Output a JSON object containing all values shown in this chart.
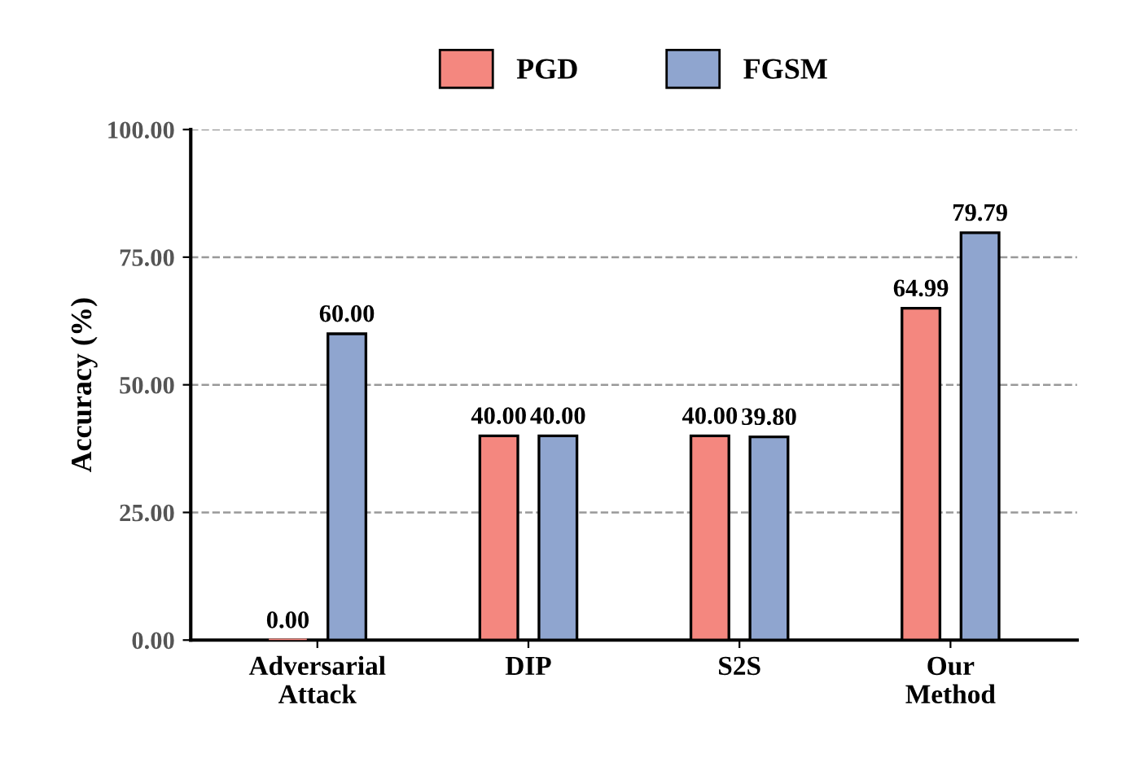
{
  "chart_data": {
    "type": "bar",
    "ylabel": "Accuracy (%)",
    "categories": [
      "Adversarial\nAttack",
      "DIP",
      "S2S",
      "Our\nMethod"
    ],
    "series": [
      {
        "name": "PGD",
        "color": "#f4877f",
        "values": [
          0.0,
          40.0,
          40.0,
          64.99
        ],
        "value_labels": [
          "0.00",
          "40.00",
          "40.00",
          "64.99"
        ]
      },
      {
        "name": "FGSM",
        "color": "#8fa5cf",
        "values": [
          60.0,
          40.0,
          39.8,
          79.79
        ],
        "value_labels": [
          "60.00",
          "40.00",
          "39.80",
          "79.79"
        ]
      }
    ],
    "ylim": [
      0,
      100
    ],
    "yticks": [
      {
        "value": 0,
        "label": "0.00"
      },
      {
        "value": 25,
        "label": "25.00"
      },
      {
        "value": 50,
        "label": "50.00"
      },
      {
        "value": 75,
        "label": "75.00"
      },
      {
        "value": 100,
        "label": "100.00"
      }
    ],
    "grid": "y",
    "legend": "top"
  }
}
